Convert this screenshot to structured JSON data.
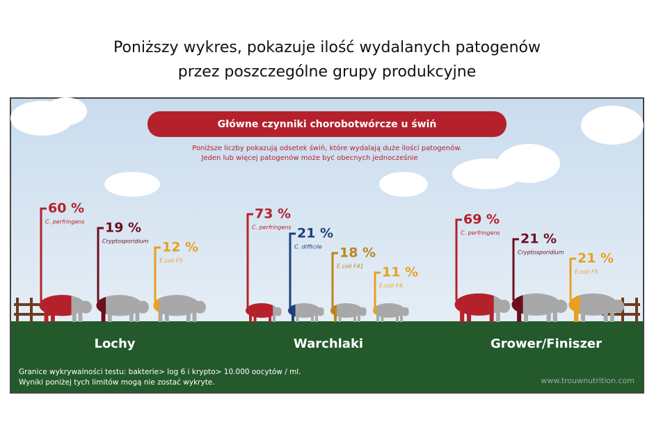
{
  "heading": [
    "Poniższy wykres, pokazuje ilość wydalanych patogenów",
    "przez poszczególne grupy produkcyjne"
  ],
  "chart_data": {
    "type": "pictograph",
    "title": "Główne czynniki chorobotwórcze u świń",
    "subtitle": [
      "Poniższe liczby pokazują odsetek świń, które wydalają duże ilości patogenów.",
      "Jeden lub więcej patogenów może być obecnych jednocześnie"
    ],
    "groups": [
      {
        "name": "Lochy",
        "items": [
          {
            "name": "C. perfringens",
            "value": 60,
            "value_label": "60 %",
            "color": "#b5212b"
          },
          {
            "name": "Cryptosporidium",
            "value": 19,
            "value_label": "19 %",
            "color": "#6b0f1e"
          },
          {
            "name": "E.coli F5",
            "value": 12,
            "value_label": "12 %",
            "color": "#e8a020"
          }
        ]
      },
      {
        "name": "Warchlaki",
        "items": [
          {
            "name": "C. perfringens",
            "value": 73,
            "value_label": "73 %",
            "color": "#b5212b"
          },
          {
            "name": "C. difficile",
            "value": 21,
            "value_label": "21 %",
            "color": "#1f3f7a"
          },
          {
            "name": "E.coli F41",
            "value": 18,
            "value_label": "18 %",
            "color": "#b8861c"
          },
          {
            "name": "E.coli F4",
            "value": 11,
            "value_label": "11 %",
            "color": "#e8a020"
          }
        ]
      },
      {
        "name": "Grower/Finiszer",
        "items": [
          {
            "name": "C. perfringens",
            "value": 69,
            "value_label": "69 %",
            "color": "#b5212b"
          },
          {
            "name": "Cryptosporidium",
            "value": 21,
            "value_label": "21 %",
            "color": "#6b0f1e"
          },
          {
            "name": "E.coli F5",
            "value": 21,
            "value_label": "21 %",
            "color": "#e8a020"
          }
        ]
      }
    ],
    "footnote": [
      "Granice wykrywalności testu: bakterie> log 6 i krypto> 10.000 oocytów / ml.",
      "Wyniki poniżej tych limitów mogą nie zostać wykryte."
    ],
    "source": "www.trouwnutrition.com"
  }
}
